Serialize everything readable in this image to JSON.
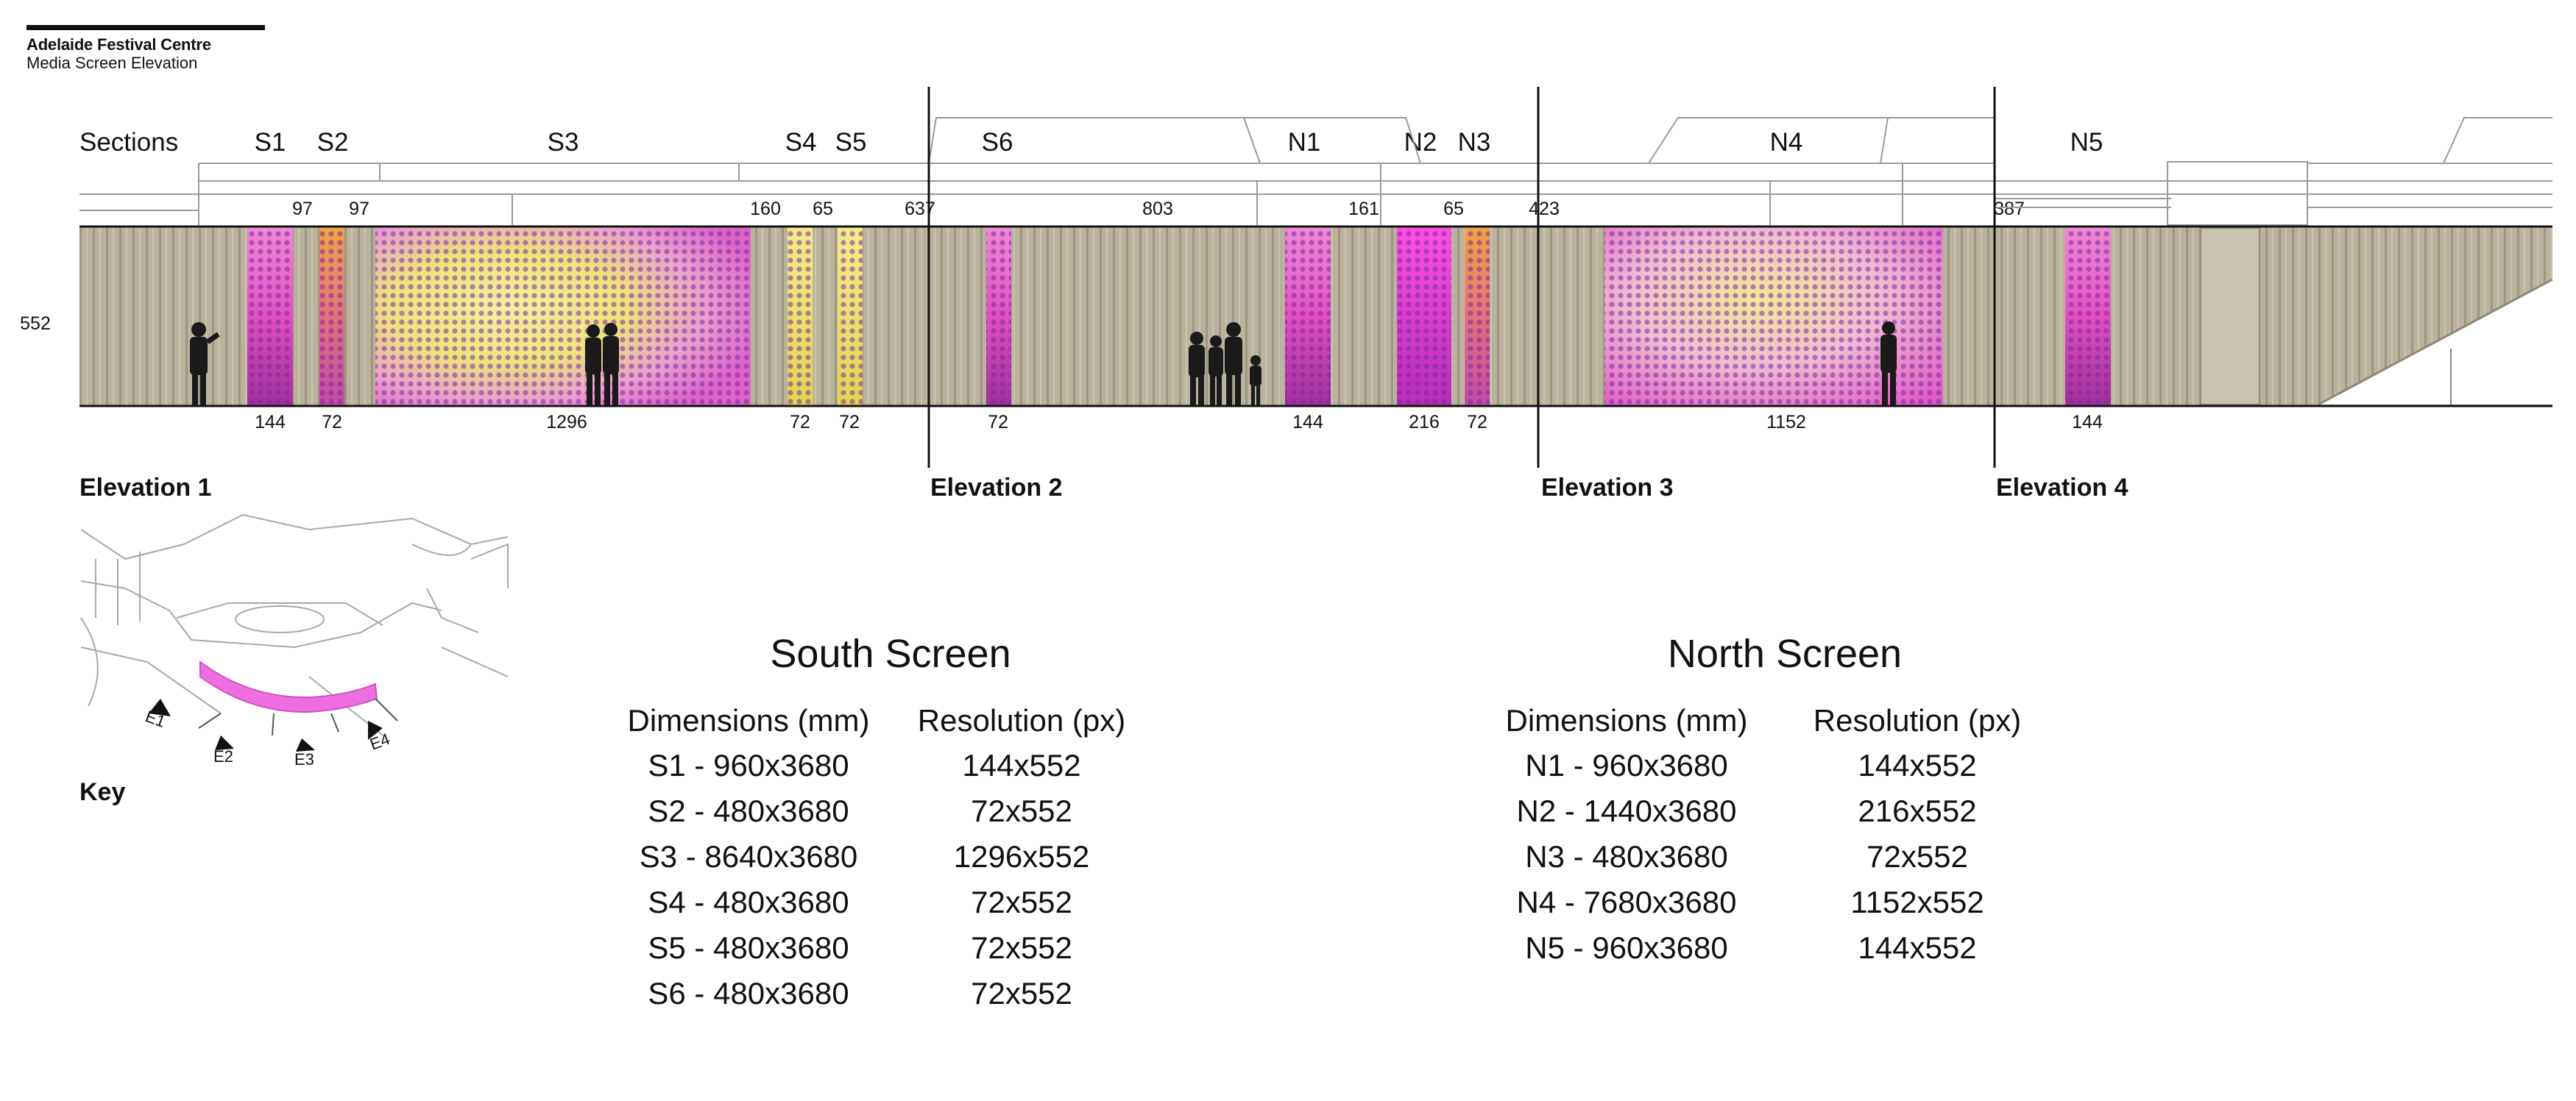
{
  "header": {
    "title": "Adelaide Festival Centre",
    "subtitle": "Media Screen Elevation"
  },
  "sections": {
    "heading": "Sections",
    "labels": [
      "S1",
      "S2",
      "S3",
      "S4",
      "S5",
      "S6",
      "N1",
      "N2",
      "N3",
      "N4",
      "N5"
    ]
  },
  "dimensions_top": [
    "97",
    "97",
    "160",
    "65",
    "637",
    "803",
    "161",
    "65",
    "423",
    "387"
  ],
  "height_label": "552",
  "dimensions_bottom": [
    "144",
    "72",
    "1296",
    "72",
    "72",
    "72",
    "144",
    "216",
    "72",
    "1152",
    "144"
  ],
  "elevations": [
    "Elevation 1",
    "Elevation 2",
    "Elevation 3",
    "Elevation 4"
  ],
  "key": {
    "label": "Key",
    "markers": [
      "E1",
      "E2",
      "E3",
      "E4"
    ]
  },
  "south_screen": {
    "title": "South Screen",
    "columns": [
      "Dimensions (mm)",
      "Resolution (px)"
    ],
    "rows": [
      [
        "S1 - 960x3680",
        "144x552"
      ],
      [
        "S2 - 480x3680",
        "72x552"
      ],
      [
        "S3 - 8640x3680",
        "1296x552"
      ],
      [
        "S4 - 480x3680",
        "72x552"
      ],
      [
        "S5 - 480x3680",
        "72x552"
      ],
      [
        "S6 - 480x3680",
        "72x552"
      ]
    ]
  },
  "north_screen": {
    "title": "North Screen",
    "columns": [
      "Dimensions (mm)",
      "Resolution (px)"
    ],
    "rows": [
      [
        "N1 - 960x3680",
        "144x552"
      ],
      [
        "N2 - 1440x3680",
        "216x552"
      ],
      [
        "N3 - 480x3680",
        "72x552"
      ],
      [
        "N4 - 7680x3680",
        "1152x552"
      ],
      [
        "N5 - 960x3680",
        "144x552"
      ]
    ]
  },
  "colors": {
    "cladding": "#b8b09b",
    "cladding_dark": "#8f8877",
    "screen_pink": "#e24fc0",
    "screen_yellow": "#efe36a",
    "screen_purple": "#6d2aa0",
    "key_highlight": "#f06fe0",
    "silhouette": "#1a1a1a"
  }
}
